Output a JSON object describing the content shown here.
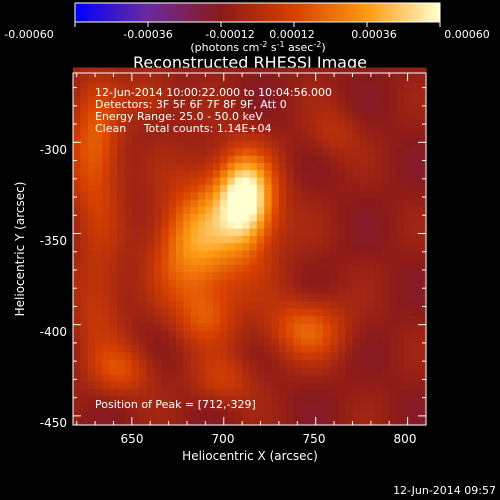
{
  "chart_data": {
    "type": "heatmap",
    "title": "Reconstructed RHESSI Image",
    "xlabel": "Heliocentric X (arcsec)",
    "ylabel": "Heliocentric Y (arcsec)",
    "xlim": [
      618,
      810
    ],
    "ylim": [
      -455,
      -262
    ],
    "x_ticks": [
      "650",
      "700",
      "750",
      "800"
    ],
    "y_ticks": [
      "-300",
      "-350",
      "-400",
      "-450"
    ],
    "colorbar": {
      "range": [
        -0.0006,
        0.0006
      ],
      "tick_labels": [
        "-0.00060",
        "-0.00036",
        "-0.00012",
        "0.00012",
        "0.00036",
        "0.00060"
      ],
      "units_prefix": "(photons cm",
      "units_exp1": "-2",
      "units_mid": " s",
      "units_exp2": "-1",
      "units_mid2": " asec",
      "units_exp3": "-2",
      "units_suffix": ")",
      "colors": [
        "#0000ff",
        "#6a2a9c",
        "#8a1a1a",
        "#d84000",
        "#ff9a10",
        "#ffffd0"
      ]
    },
    "info_lines": [
      "12-Jun-2014 10:00:22.000 to 10:04:56.000",
      "Detectors: 3F 5F 6F 7F 8F 9F, Att 0",
      "Energy Range: 25.0 - 50.0 keV",
      "Clean     Total counts: 1.14E+04"
    ],
    "peak_label": "Position of Peak = [712,-329]",
    "peak": [
      712,
      -329
    ],
    "sources": [
      {
        "x": 712,
        "y": -330,
        "amp": 0.0006,
        "sx": 10,
        "sy": 16
      },
      {
        "x": 700,
        "y": -345,
        "amp": 0.00034,
        "sx": 20,
        "sy": 25
      },
      {
        "x": 680,
        "y": -360,
        "amp": 0.00026,
        "sx": 14,
        "sy": 20
      },
      {
        "x": 690,
        "y": -395,
        "amp": 0.00022,
        "sx": 12,
        "sy": 12
      },
      {
        "x": 745,
        "y": -402,
        "amp": 0.0003,
        "sx": 15,
        "sy": 12
      },
      {
        "x": 630,
        "y": -305,
        "amp": 0.00032,
        "sx": 10,
        "sy": 26
      },
      {
        "x": 632,
        "y": -385,
        "amp": 0.00018,
        "sx": 10,
        "sy": 24
      },
      {
        "x": 645,
        "y": -425,
        "amp": 0.00022,
        "sx": 12,
        "sy": 10
      },
      {
        "x": 700,
        "y": -430,
        "amp": 0.00018,
        "sx": 12,
        "sy": 10
      },
      {
        "x": 760,
        "y": -295,
        "amp": 0.00012,
        "sx": 10,
        "sy": 10
      },
      {
        "x": 660,
        "y": -275,
        "amp": 0.00016,
        "sx": 10,
        "sy": 10
      }
    ],
    "background": -0.0001,
    "timestamp": "12-Jun-2014 09:57"
  }
}
